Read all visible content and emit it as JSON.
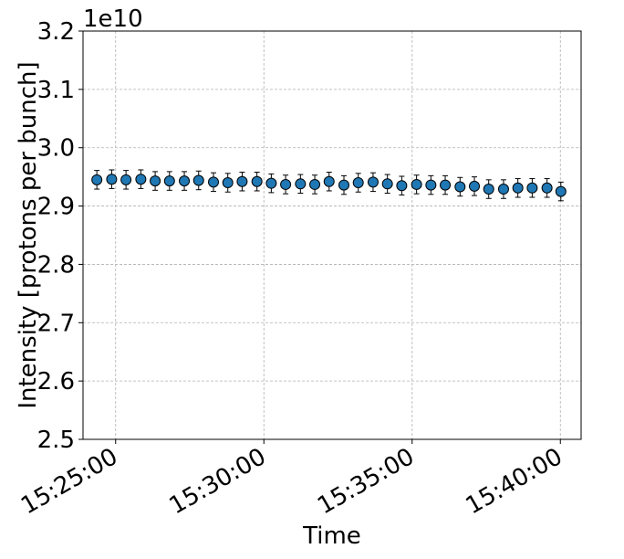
{
  "chart_data": {
    "type": "scatter",
    "title": "",
    "xlabel": "Time",
    "ylabel": "Intensity [protons per bunch]",
    "y_offset_label": "1e10",
    "ylim": [
      2.5,
      3.2
    ],
    "xlim": [
      "15:23:54",
      "15:40:42"
    ],
    "yticks": [
      "2.5",
      "2.6",
      "2.7",
      "2.8",
      "2.9",
      "3.0",
      "3.1",
      "3.2"
    ],
    "xticks": [
      "15:25:00",
      "15:30:00",
      "15:35:00",
      "15:40:00"
    ],
    "grid": true,
    "marker_color": "#1f77b4",
    "marker_edge_color": "#000000",
    "series": [
      {
        "x": [
          "15:24:22",
          "15:24:52",
          "15:25:21",
          "15:25:51",
          "15:26:20",
          "15:26:49",
          "15:27:19",
          "15:27:48",
          "15:28:18",
          "15:28:47",
          "15:29:16",
          "15:29:46",
          "15:30:15",
          "15:30:44",
          "15:31:14",
          "15:31:43",
          "15:32:12",
          "15:32:42",
          "15:33:11",
          "15:33:41",
          "15:34:10",
          "15:34:39",
          "15:35:09",
          "15:35:38",
          "15:36:07",
          "15:36:37",
          "15:37:06",
          "15:37:35",
          "15:38:05",
          "15:38:34",
          "15:39:03",
          "15:39:33",
          "15:40:01"
        ],
        "y": [
          2.945,
          2.946,
          2.945,
          2.946,
          2.943,
          2.943,
          2.943,
          2.944,
          2.941,
          2.94,
          2.942,
          2.942,
          2.939,
          2.937,
          2.938,
          2.937,
          2.942,
          2.936,
          2.94,
          2.941,
          2.938,
          2.935,
          2.937,
          2.936,
          2.936,
          2.933,
          2.934,
          2.929,
          2.929,
          2.931,
          2.931,
          2.931,
          2.925
        ],
        "yerr": [
          0.016,
          0.016,
          0.016,
          0.016,
          0.016,
          0.016,
          0.016,
          0.016,
          0.016,
          0.016,
          0.016,
          0.016,
          0.016,
          0.016,
          0.016,
          0.016,
          0.016,
          0.016,
          0.016,
          0.016,
          0.016,
          0.016,
          0.016,
          0.016,
          0.016,
          0.016,
          0.016,
          0.016,
          0.016,
          0.016,
          0.016,
          0.016,
          0.016
        ]
      }
    ]
  }
}
